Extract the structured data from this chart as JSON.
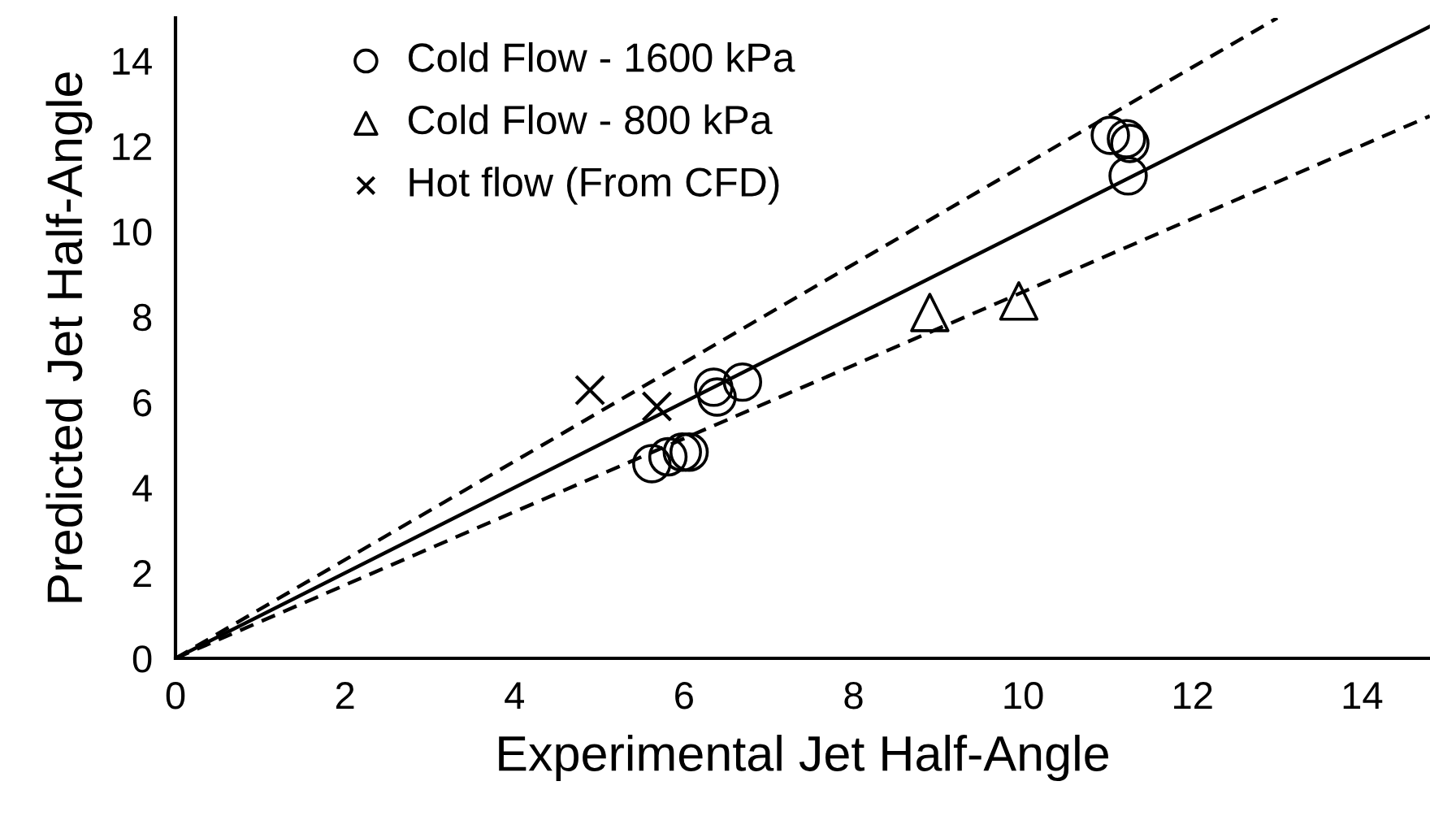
{
  "chart_data": {
    "type": "scatter",
    "xlabel": "Experimental Jet Half-Angle",
    "ylabel": "Predicted Jet Half-Angle",
    "xlim": [
      0,
      14.8
    ],
    "ylim": [
      0,
      15
    ],
    "xticks": [
      0,
      2,
      4,
      6,
      8,
      10,
      12,
      14
    ],
    "yticks": [
      0,
      2,
      4,
      6,
      8,
      10,
      12,
      14
    ],
    "grid": false,
    "legend": "top left",
    "series": [
      {
        "name": "Cold Flow - 1600 kPa",
        "color": "#000000",
        "marker": "circle",
        "x": [
          5.62,
          5.81,
          5.98,
          6.06,
          6.35,
          6.39,
          6.69,
          11.03,
          11.22,
          11.26,
          11.24
        ],
        "values": [
          4.56,
          4.72,
          4.83,
          4.83,
          6.35,
          6.12,
          6.47,
          12.25,
          12.17,
          12.06,
          11.3
        ]
      },
      {
        "name": "Cold Flow - 800 kPa",
        "color": "#000000",
        "marker": "triangle",
        "x": [
          8.9,
          9.95
        ],
        "values": [
          8.1,
          8.37
        ]
      },
      {
        "name": "Hot flow (From CFD)",
        "color": "#000000",
        "marker": "cross",
        "x": [
          4.89,
          5.68
        ],
        "values": [
          6.28,
          5.9
        ]
      },
      {
        "type": "line",
        "color": "#000000",
        "line_style": "solid",
        "marker": "none",
        "x": [
          0,
          14.8
        ],
        "values": [
          0,
          14.8
        ]
      },
      {
        "type": "line",
        "color": "#000000",
        "line_style": "dashed",
        "marker": "none",
        "x": [
          0,
          13
        ],
        "values": [
          0,
          15
        ]
      },
      {
        "type": "line",
        "color": "#000000",
        "line_style": "dashed",
        "marker": "none",
        "x": [
          0,
          14.8
        ],
        "values": [
          0,
          12.7
        ]
      }
    ]
  }
}
